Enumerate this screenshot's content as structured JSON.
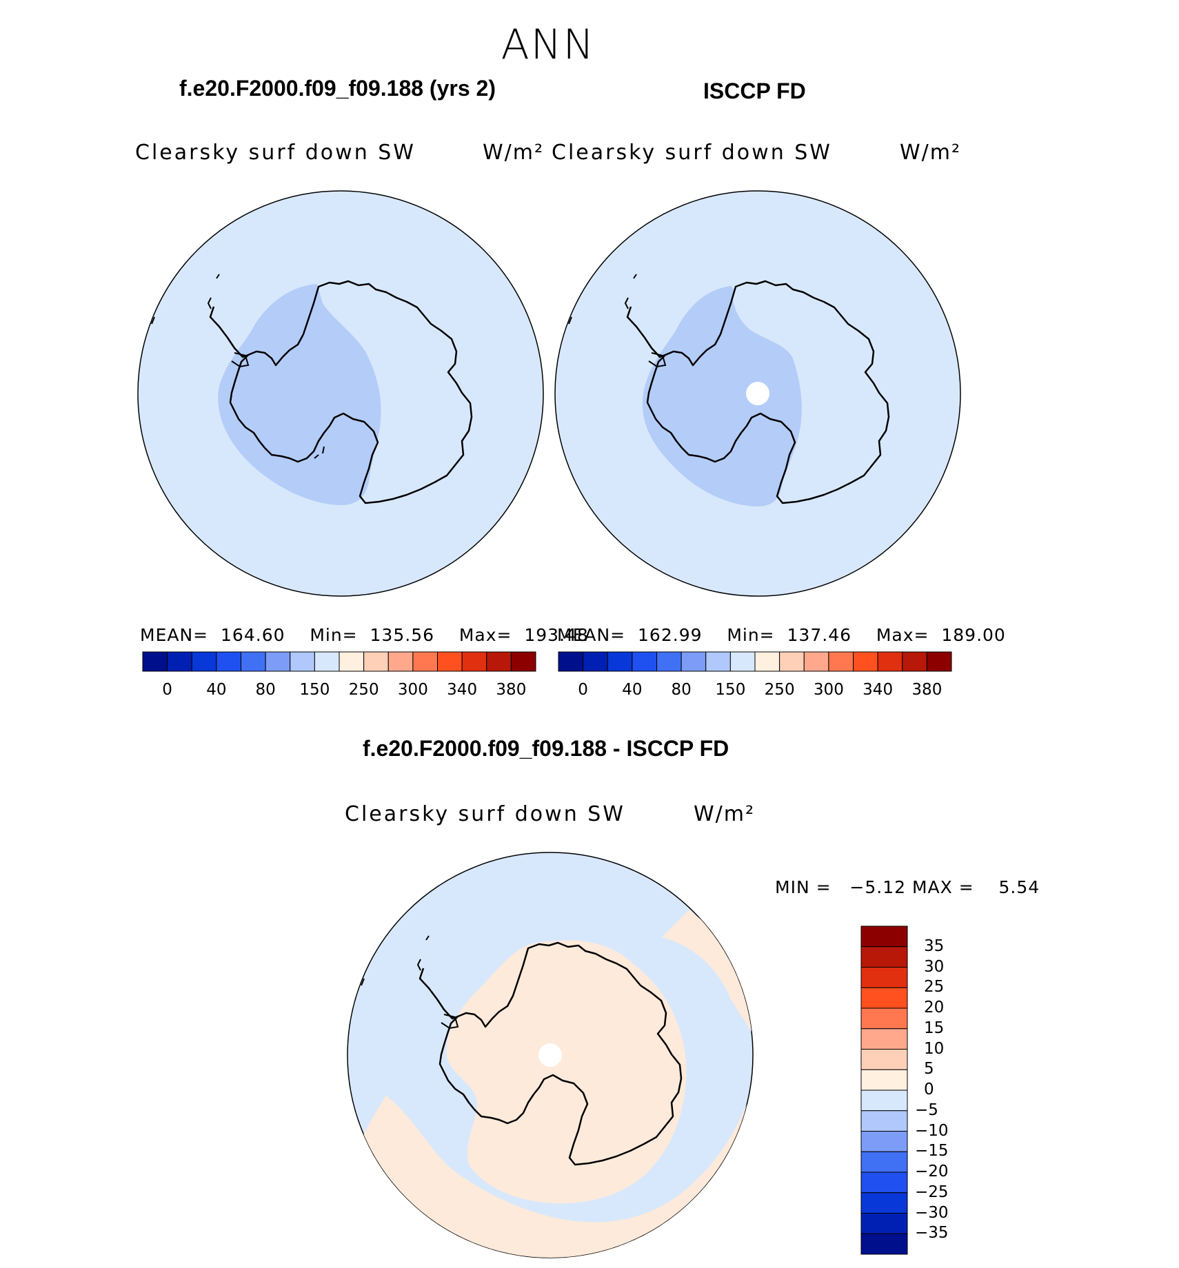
{
  "figure": {
    "title": "ANN",
    "diff_title": "f.e20.F2000.f09_f09.188 - ISCCP FD"
  },
  "panels": [
    {
      "title": "f.e20.F2000.f09_f09.188 (yrs 2)",
      "variable": "Clearsky surf down SW",
      "units": "W/m²",
      "stats": {
        "mean_label": "MEAN=",
        "mean": "164.60",
        "min_label": "Min=",
        "min": "135.56",
        "max_label": "Max=",
        "max": "193.48"
      }
    },
    {
      "title": "ISCCP FD",
      "variable": "Clearsky surf down SW",
      "units": "W/m²",
      "stats": {
        "mean_label": "MEAN=",
        "mean": "162.99",
        "min_label": "Min=",
        "min": "137.46",
        "max_label": "Max=",
        "max": "189.00"
      }
    }
  ],
  "diff_panel": {
    "variable": "Clearsky surf down SW",
    "units": "W/m²",
    "stats": {
      "min_label": "MIN =",
      "min": "−5.12",
      "max_label": "MAX =",
      "max": "5.54"
    }
  },
  "colorbar_main": {
    "colors": [
      "#00108c",
      "#0020b4",
      "#0838d8",
      "#2050f0",
      "#4070f4",
      "#7c9cf8",
      "#b0c8fc",
      "#d8e8fc",
      "#fff0e0",
      "#ffd0b8",
      "#ffa88c",
      "#ff7850",
      "#ff5020",
      "#e03010",
      "#b81808",
      "#8c0000"
    ],
    "ticks": [
      "0",
      "40",
      "80",
      "150",
      "250",
      "300",
      "340",
      "380"
    ]
  },
  "colorbar_diff": {
    "colors": [
      "#8c0000",
      "#b81808",
      "#e03010",
      "#ff5020",
      "#ff7850",
      "#ffa88c",
      "#ffd0b8",
      "#fff0e0",
      "#d8e8fc",
      "#b0c8fc",
      "#7c9cf8",
      "#4070f4",
      "#2050f0",
      "#0838d8",
      "#0020b4",
      "#00108c"
    ],
    "ticks": [
      "35",
      "30",
      "25",
      "20",
      "15",
      "10",
      "5",
      "0",
      "−5",
      "−10",
      "−15",
      "−20",
      "−25",
      "−30",
      "−35"
    ]
  },
  "map_colors": {
    "ocean": "#d8e8fc",
    "low_region": "#b4ccf8",
    "diff_positive": "#feeada",
    "coast": "#000000",
    "missing": "#ffffff"
  }
}
